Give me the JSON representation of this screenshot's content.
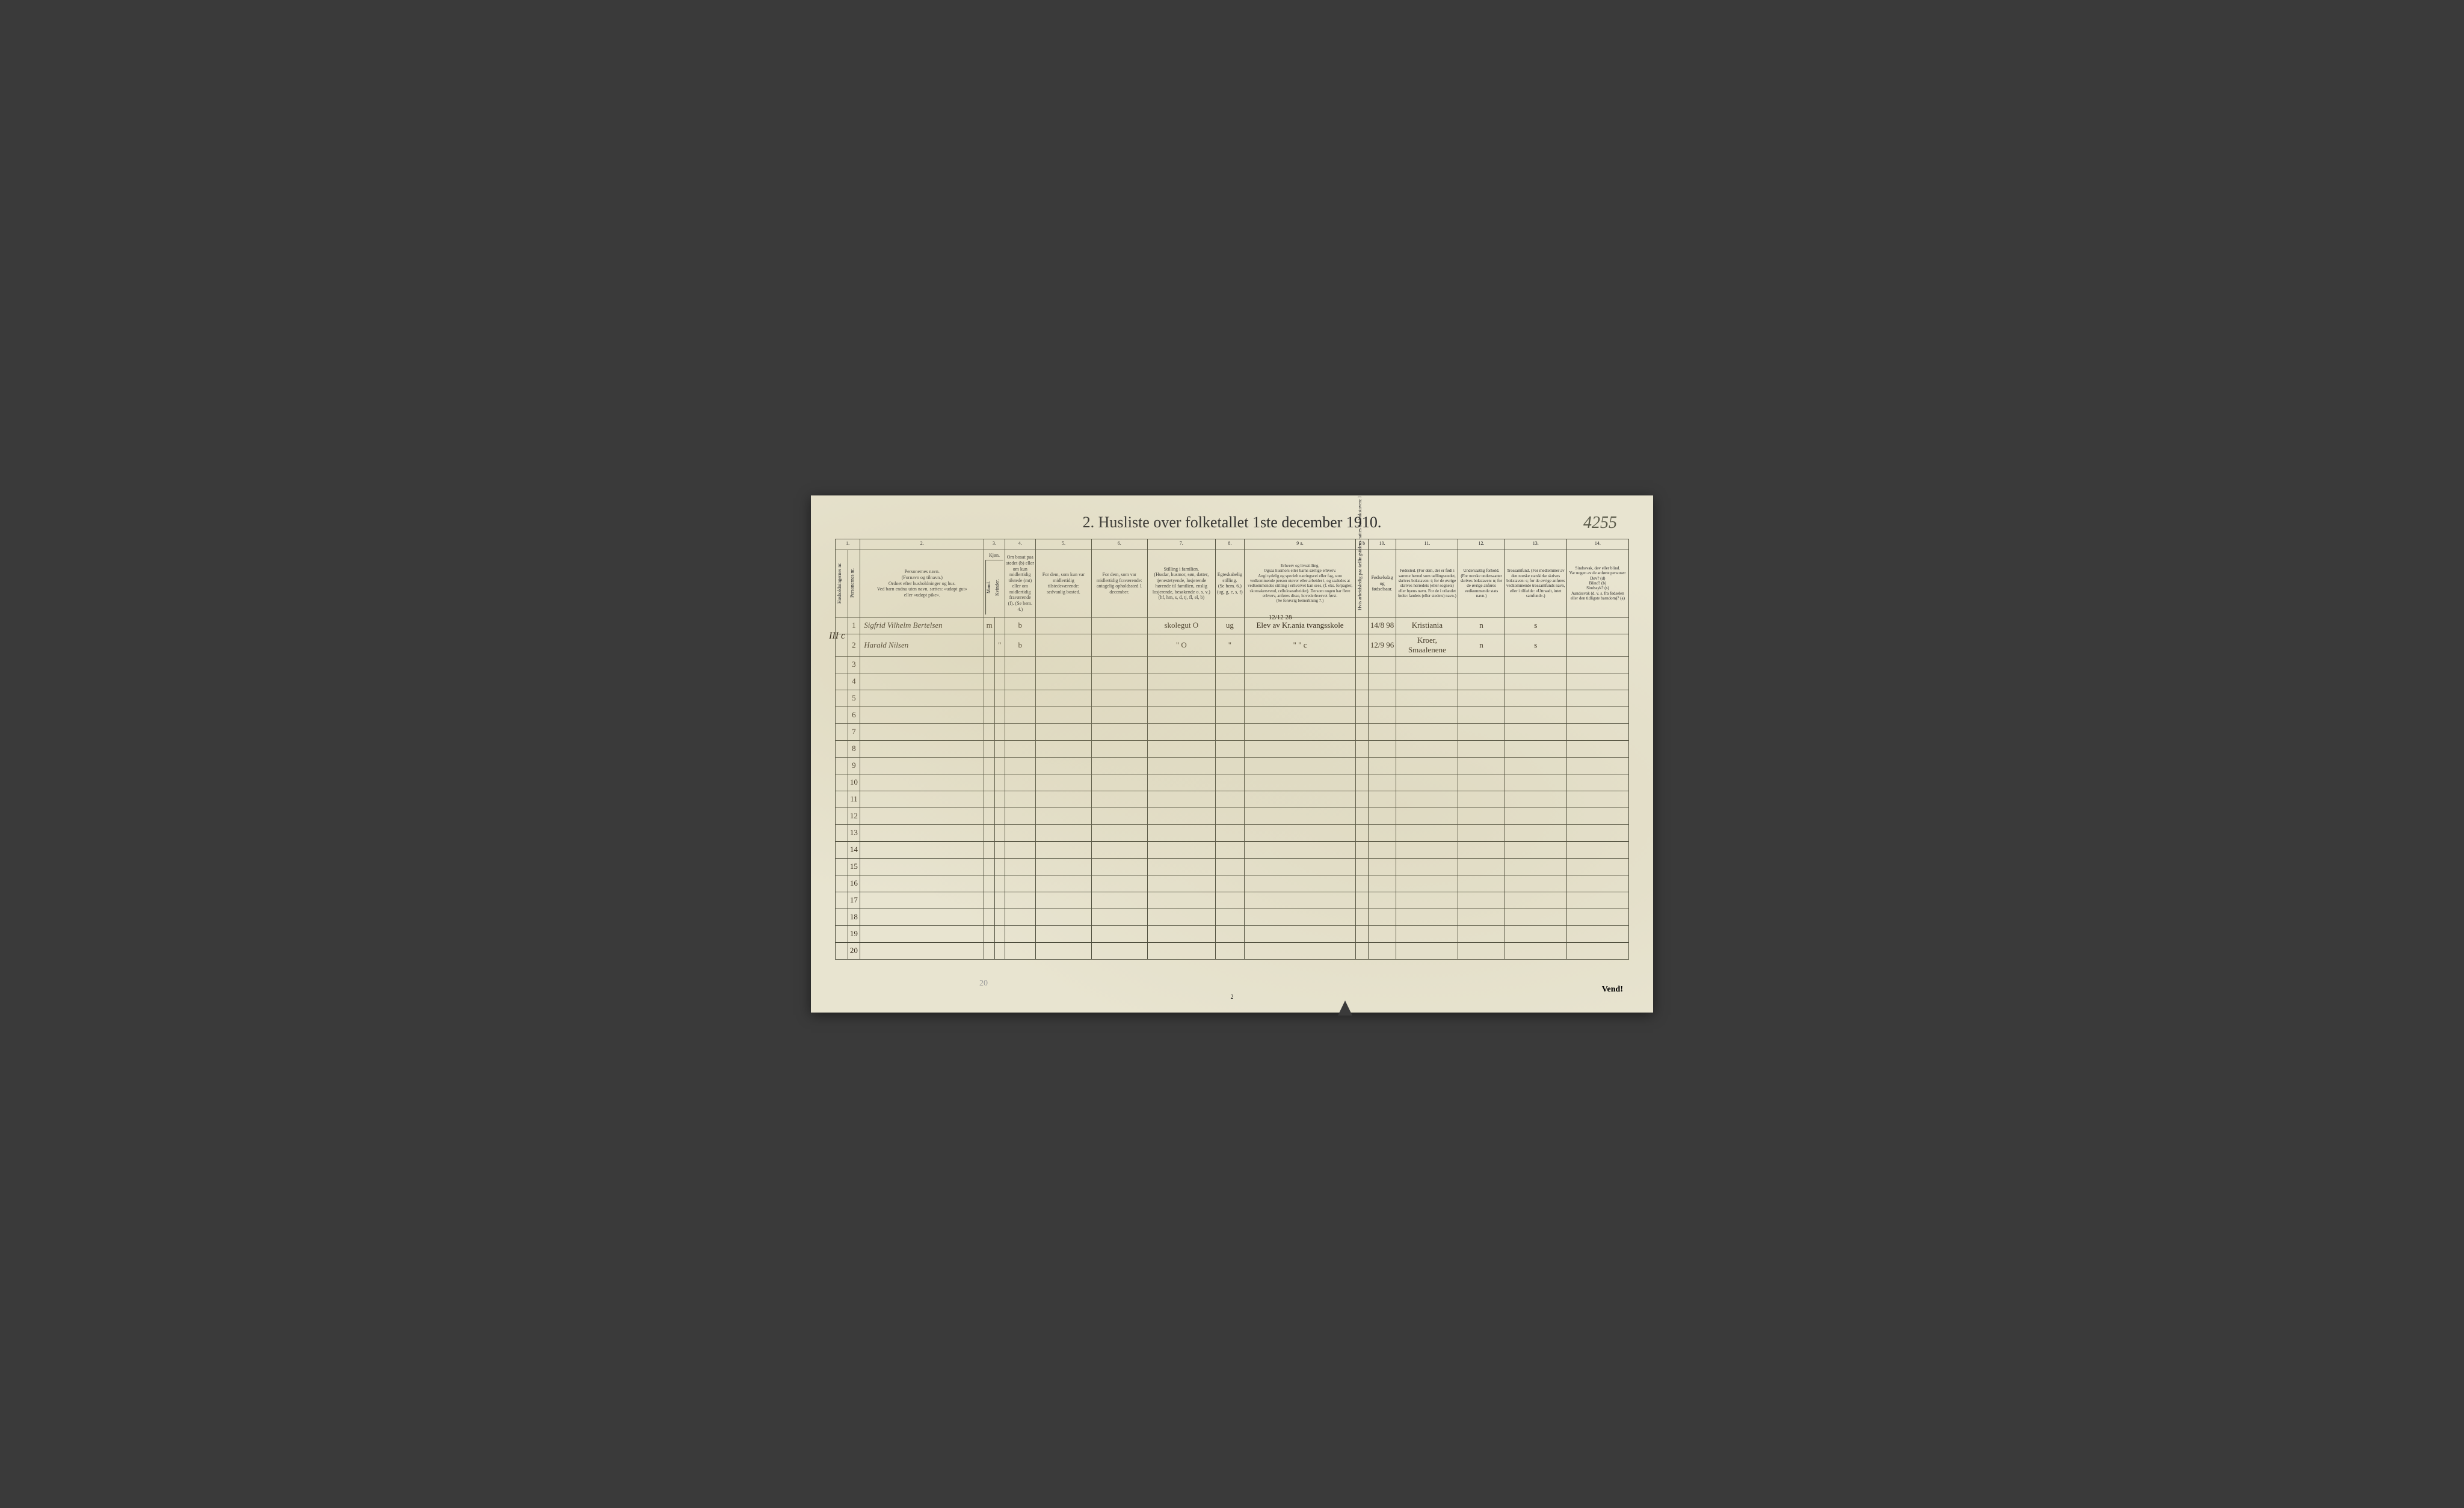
{
  "title": "2.  Husliste over folketallet 1ste december 1910.",
  "handwritten_top_right": "4255",
  "left_margin": "III c",
  "columns": {
    "c1": "1.",
    "c2": "2.",
    "c3": "3.",
    "c4": "4.",
    "c5": "5.",
    "c6": "6.",
    "c7": "7.",
    "c8": "8.",
    "c9a": "9 a.",
    "c9b": "9 b",
    "c10": "10.",
    "c11": "11.",
    "c12": "12.",
    "c13": "13.",
    "c14": "14."
  },
  "headers": {
    "husholdning": "Husholdningernes nr.",
    "person_nr": "Personernes nr.",
    "navn": "Personernes navn.\n(Fornavn og tilnavn.)\nOrdnet efter husholdninger og hus.\nVed barn endnu uten navn, sættes: «udøpt gut»\neller «udøpt pike».",
    "kjon_m": "Mand.",
    "kjon_k": "Kvinder.",
    "kjon": "Kjøn.",
    "bosat": "Om bosat paa stedet (b) eller om kun midlertidig tilstede (mt) eller om midlertidig fraværende (f). (Se bem. 4.)",
    "tilstede": "For dem, som kun var midlertidig tilstedeværende:\nsedvanlig bosted.",
    "fravaerende": "For dem, som var midlertidig fraværende:\nantagelig opholdssted 1 december.",
    "stilling_familie": "Stilling i familien.\n(Husfar, husmor, søn, datter, tjenestetyende, losjerende hørende til familien, enslig losjerende, besøkende o. s. v.)\n(hf, hm, s, d, tj, fl, el, b)",
    "egteskab": "Egteskabelig stilling.\n(Se bem. 6.)\n(ug, g, e, s, f)",
    "erhverv": "Erhverv og livsstilling.\nOgsaa husmors eller barns særlige erhverv.\nAngi tydelig og specielt næringsvei eller fag, som vedkommende person utøver eller arbeider i, og saaledes at vedkommendes stilling i erhvervet kan sees, (f. eks. forpagter, skomakersvend, cellulosearbeider). Dersom nogen har flere erhverv, anføres disse, hovederhvervet først.\n(Se forøvrig bemerkning 7.)",
    "arbeidsledig": "Hvis arbeidsledig paa tællingstidens nattes der bokstaven: l",
    "fodsels": "Fødselsdag og fødselsaar.",
    "fodested": "Fødested.\n(For dem, der er født i samme herred som tællingsstedet, skrives bokstaven: t; for de øvrige skrives herredets (eller sognets) eller byens navn. For de i utlandet fødte: landets (eller stedets) navn.)",
    "undersaat": "Undersaatlig forhold.\n(For norske undersaatter skrives bokstaven: n; for de øvrige anføres vedkommende stats navn.)",
    "trossamfund": "Trossamfund.\n(For medlemmer av den norske statskirke skrives bokstaven: s; for de øvrige anføres vedkommende trossamfunds navn, eller i tilfælde: «Uttraadt, intet samfund».)",
    "sindssvak": "Sindssvak, døv eller blind.\nVar nogen av de anførte personer:\nDøv? (d)\nBlind? (b)\nSindssyk? (s)\nAandssvak (d. v. s. fra fødselen eller den tidligste barndom)? (a)"
  },
  "rows": [
    {
      "household": "",
      "num": "1",
      "name": "Sigfrid Vilhelm Bertelsen",
      "sex": "m",
      "bosat": "b",
      "tilstede": "",
      "fravaerende": "",
      "stilling": "skolegut O",
      "egteskab": "ug",
      "erhverv": "Elev av Kr.ania tvangsskole",
      "arbeidsledig": "",
      "fodsels": "14/8 98",
      "fodested": "Kristiania",
      "undersaat": "n",
      "tros": "s",
      "sindssvak": ""
    },
    {
      "household": "",
      "num": "2",
      "name": "Harald Nilsen",
      "sex": "\"",
      "bosat": "b",
      "tilstede": "",
      "fravaerende": "",
      "stilling": "\"      O",
      "egteskab": "\"",
      "erhverv": "\"    \"        c",
      "arbeidsledig": "",
      "fodsels": "12/9 96",
      "fodested": "Kroer, Smaalenene",
      "undersaat": "n",
      "tros": "s",
      "sindssvak": ""
    }
  ],
  "overwrite_row1": "12/12 28",
  "empty_rows": [
    "3",
    "4",
    "5",
    "6",
    "7",
    "8",
    "9",
    "10",
    "11",
    "12",
    "13",
    "14",
    "15",
    "16",
    "17",
    "18",
    "19",
    "20"
  ],
  "footer": "Vend!",
  "page_number": "2",
  "pencil_bottom": "20",
  "colors": {
    "paper_bg": "#e8e4d0",
    "border": "#4a4a3a",
    "text": "#2a2a2a",
    "handwriting": "#3a3020",
    "page_bg": "#3a3a3a"
  },
  "col_widths": {
    "household": "20",
    "person_nr": "20",
    "name": "200",
    "sex_m": "16",
    "sex_k": "16",
    "bosat": "50",
    "tilstede": "90",
    "fravaerende": "90",
    "stilling": "110",
    "egteskab": "45",
    "erhverv": "180",
    "arbeidsledig": "20",
    "fodsels": "45",
    "fodested": "100",
    "undersaat": "75",
    "tros": "100",
    "sindssvak": "100"
  }
}
